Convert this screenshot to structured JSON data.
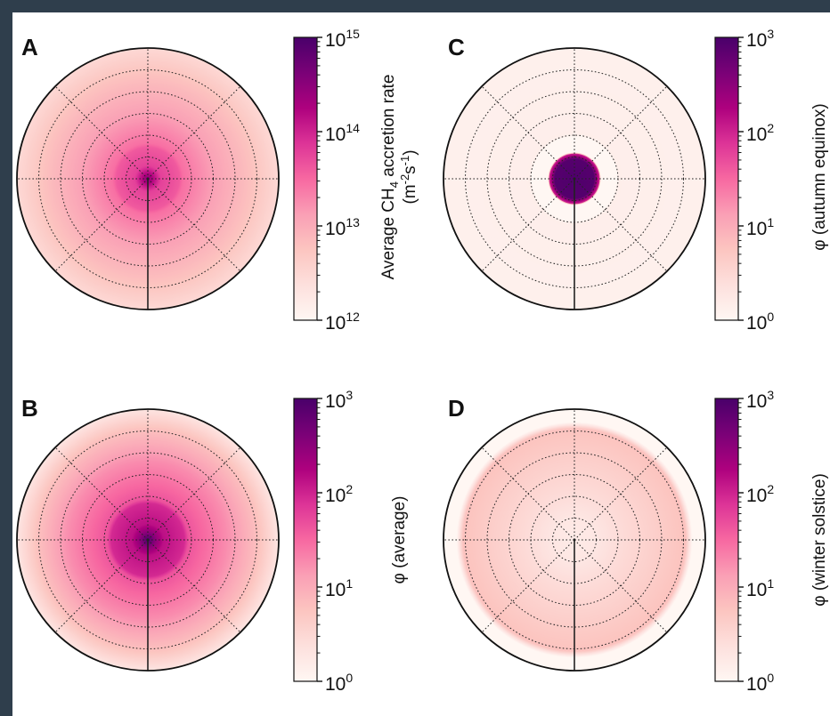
{
  "chart_data": [
    {
      "type": "heatmap",
      "panel": "A",
      "projection": "polar",
      "colormap": "RdPu",
      "colorbar": {
        "scale": "log",
        "range": [
          1000000000000.0,
          1000000000000000.0
        ],
        "ticks": [
          {
            "base": "10",
            "exp": "12"
          },
          {
            "base": "10",
            "exp": "13"
          },
          {
            "base": "10",
            "exp": "14"
          },
          {
            "base": "10",
            "exp": "15"
          }
        ],
        "label_line1": {
          "pre": "Average CH",
          "sub": "4",
          "post": " accretion rate"
        },
        "label_line2": {
          "open": "(m",
          "exp1": "-2",
          "mid": "s",
          "exp2": "-1",
          "close": ")"
        }
      },
      "radial_profile": [
        {
          "r": 0.0,
          "value": 300000000000000.0
        },
        {
          "r": 0.06,
          "value": 120000000000000.0
        },
        {
          "r": 0.1,
          "value": 60000000000000.0
        },
        {
          "r": 0.24,
          "value": 40000000000000.0
        },
        {
          "r": 0.27,
          "value": 28000000000000.0
        },
        {
          "r": 0.5,
          "value": 13000000000000.0
        },
        {
          "r": 0.8,
          "value": 6000000000000.0
        },
        {
          "r": 1.0,
          "value": 3000000000000.0
        }
      ]
    },
    {
      "type": "heatmap",
      "panel": "B",
      "projection": "polar",
      "colormap": "RdPu",
      "colorbar": {
        "scale": "log",
        "range": [
          1,
          1000
        ],
        "ticks": [
          {
            "base": "10",
            "exp": "0"
          },
          {
            "base": "10",
            "exp": "1"
          },
          {
            "base": "10",
            "exp": "2"
          },
          {
            "base": "10",
            "exp": "3"
          }
        ],
        "label": "φ (average)"
      },
      "radial_profile": [
        {
          "r": 0.0,
          "value": 900
        },
        {
          "r": 0.06,
          "value": 300
        },
        {
          "r": 0.12,
          "value": 140
        },
        {
          "r": 0.28,
          "value": 90
        },
        {
          "r": 0.31,
          "value": 45
        },
        {
          "r": 0.6,
          "value": 18
        },
        {
          "r": 0.85,
          "value": 6
        },
        {
          "r": 1.0,
          "value": 2
        }
      ]
    },
    {
      "type": "heatmap",
      "panel": "C",
      "projection": "polar",
      "colormap": "RdPu",
      "colorbar": {
        "scale": "log",
        "range": [
          1,
          1000
        ],
        "ticks": [
          {
            "base": "10",
            "exp": "0"
          },
          {
            "base": "10",
            "exp": "1"
          },
          {
            "base": "10",
            "exp": "2"
          },
          {
            "base": "10",
            "exp": "3"
          }
        ],
        "label": "φ (autumn equinox)"
      },
      "radial_profile": [
        {
          "r": 0.0,
          "value": 900
        },
        {
          "r": 0.15,
          "value": 800
        },
        {
          "r": 0.19,
          "value": 100
        },
        {
          "r": 0.2,
          "value": 1
        },
        {
          "r": 0.32,
          "value": 1
        },
        {
          "r": 0.34,
          "value": 1.4
        },
        {
          "r": 1.0,
          "value": 1.3
        }
      ]
    },
    {
      "type": "heatmap",
      "panel": "D",
      "projection": "polar",
      "colormap": "RdPu",
      "colorbar": {
        "scale": "log",
        "range": [
          1,
          1000
        ],
        "ticks": [
          {
            "base": "10",
            "exp": "0"
          },
          {
            "base": "10",
            "exp": "1"
          },
          {
            "base": "10",
            "exp": "2"
          },
          {
            "base": "10",
            "exp": "3"
          }
        ],
        "label": "φ (winter solstice)"
      },
      "radial_profile": [
        {
          "r": 0.0,
          "value": 1.6
        },
        {
          "r": 0.15,
          "value": 1.8
        },
        {
          "r": 0.3,
          "value": 2.5
        },
        {
          "r": 0.6,
          "value": 4
        },
        {
          "r": 0.85,
          "value": 6
        },
        {
          "r": 0.9,
          "value": 1
        },
        {
          "r": 1.0,
          "value": 1
        }
      ]
    }
  ]
}
